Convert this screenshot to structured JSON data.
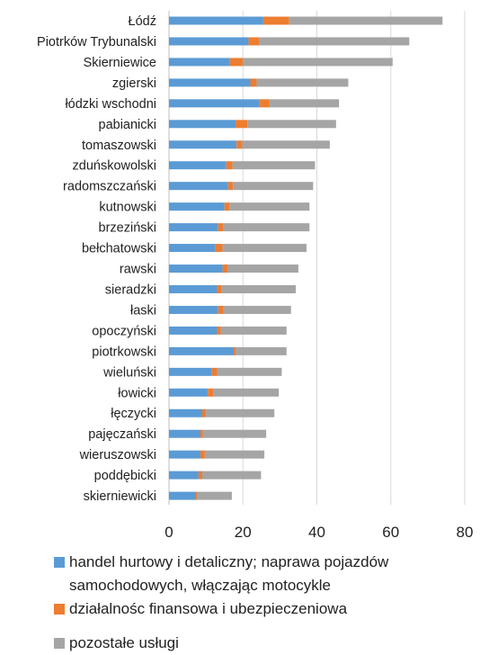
{
  "chart_data": {
    "type": "bar",
    "orientation": "horizontal",
    "stacked": true,
    "categories": [
      "Łódź",
      "Piotrków Trybunalski",
      "Skierniewice",
      "zgierski",
      "łódzki wschodni",
      "pabianicki",
      "tomaszowski",
      "zduńskowolski",
      "radomszczański",
      "kutnowski",
      "brzeziński",
      "bełchatowski",
      "rawski",
      "sieradzki",
      "łaski",
      "opoczyński",
      "piotrkowski",
      "wieluński",
      "łowicki",
      "łęczycki",
      "pajęczański",
      "wieruszowski",
      "poddębicki",
      "skierniewicki"
    ],
    "series": [
      {
        "name": "handel hurtowy i detaliczny; naprawa pojazdów samochodowych, włączając motocykle",
        "color": "#5B9BD5",
        "values": [
          25.5,
          21.5,
          16.5,
          22,
          24.5,
          18,
          18.3,
          15.5,
          16,
          15,
          13.3,
          12.5,
          14.5,
          13,
          13.3,
          13,
          17.5,
          11.5,
          10.5,
          9,
          8.5,
          8.5,
          8,
          7.3
        ]
      },
      {
        "name": "działalnośc finansowa i ubezpieczeniowa",
        "color": "#ED7D31",
        "values": [
          7,
          3,
          3.5,
          1.7,
          2.7,
          3.2,
          1.5,
          1.7,
          1.3,
          1.3,
          1.3,
          2,
          1.3,
          1.2,
          1.5,
          1,
          0.5,
          1.5,
          1.5,
          1,
          0.7,
          1.2,
          1,
          0.4
        ]
      },
      {
        "name": "pozostałe usługi",
        "color": "#A5A5A5",
        "values": [
          41.5,
          40.5,
          40.5,
          24.8,
          18.8,
          24,
          23.7,
          22.3,
          21.7,
          21.7,
          23.4,
          22.7,
          19.2,
          20.1,
          18.2,
          17.8,
          13.8,
          17.5,
          17.7,
          18.5,
          17.1,
          16.1,
          15.9,
          9.3
        ]
      }
    ],
    "xlim": [
      0,
      80
    ],
    "xticks": [
      0,
      20,
      40,
      60,
      80
    ],
    "grid": true,
    "legend": "bottom"
  }
}
